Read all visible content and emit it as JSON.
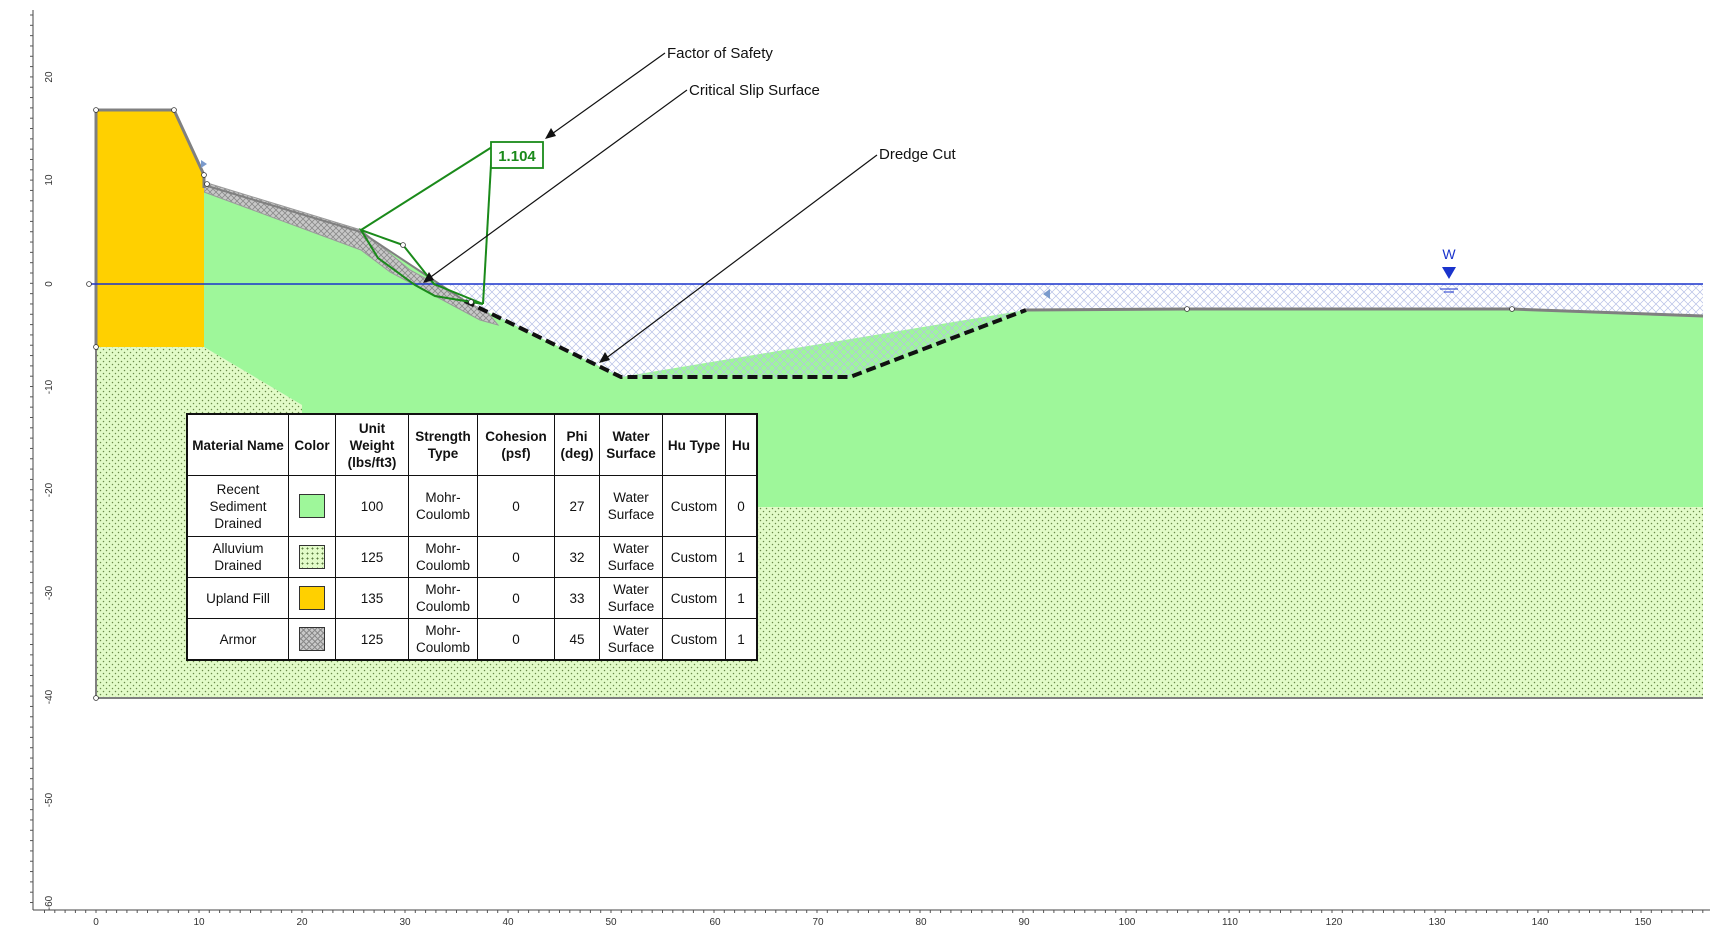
{
  "axes": {
    "x_ticks": [
      "0",
      "10",
      "20",
      "30",
      "40",
      "50",
      "60",
      "70",
      "80",
      "90",
      "100",
      "110",
      "120",
      "130",
      "140",
      "150"
    ],
    "y_ticks": [
      "20",
      "10",
      "0",
      "-10",
      "-20",
      "-30",
      "-40",
      "-50",
      "-60"
    ]
  },
  "callouts": {
    "factor_of_safety_label": "Factor of Safety",
    "critical_slip_label": "Critical Slip Surface",
    "dredge_cut_label": "Dredge Cut",
    "fos_value": "1.104",
    "water_label": "W"
  },
  "colors": {
    "recent_sediment": "#9ef79a",
    "alluvium": "#e2fbc8",
    "upland_fill": "#ffd000",
    "armor": "#c8c8c8",
    "water_line": "#1a33cc",
    "slip_surface": "#1a8a1a"
  },
  "table": {
    "headers": [
      "Material Name",
      "Color",
      "Unit Weight (lbs/ft3)",
      "Strength Type",
      "Cohesion (psf)",
      "Phi (deg)",
      "Water Surface",
      "Hu Type",
      "Hu"
    ],
    "rows": [
      {
        "name": "Recent Sediment Drained",
        "swatch": "recent",
        "unit_weight": "100",
        "strength": "Mohr-Coulomb",
        "cohesion": "0",
        "phi": "27",
        "water": "Water Surface",
        "hu_type": "Custom",
        "hu": "0"
      },
      {
        "name": "Alluvium Drained",
        "swatch": "alluvium",
        "unit_weight": "125",
        "strength": "Mohr-Coulomb",
        "cohesion": "0",
        "phi": "32",
        "water": "Water Surface",
        "hu_type": "Custom",
        "hu": "1"
      },
      {
        "name": "Upland Fill",
        "swatch": "fill",
        "unit_weight": "135",
        "strength": "Mohr-Coulomb",
        "cohesion": "0",
        "phi": "33",
        "water": "Water Surface",
        "hu_type": "Custom",
        "hu": "1"
      },
      {
        "name": "Armor",
        "swatch": "armor",
        "unit_weight": "125",
        "strength": "Mohr-Coulomb",
        "cohesion": "0",
        "phi": "45",
        "water": "Water Surface",
        "hu_type": "Custom",
        "hu": "1"
      }
    ]
  }
}
